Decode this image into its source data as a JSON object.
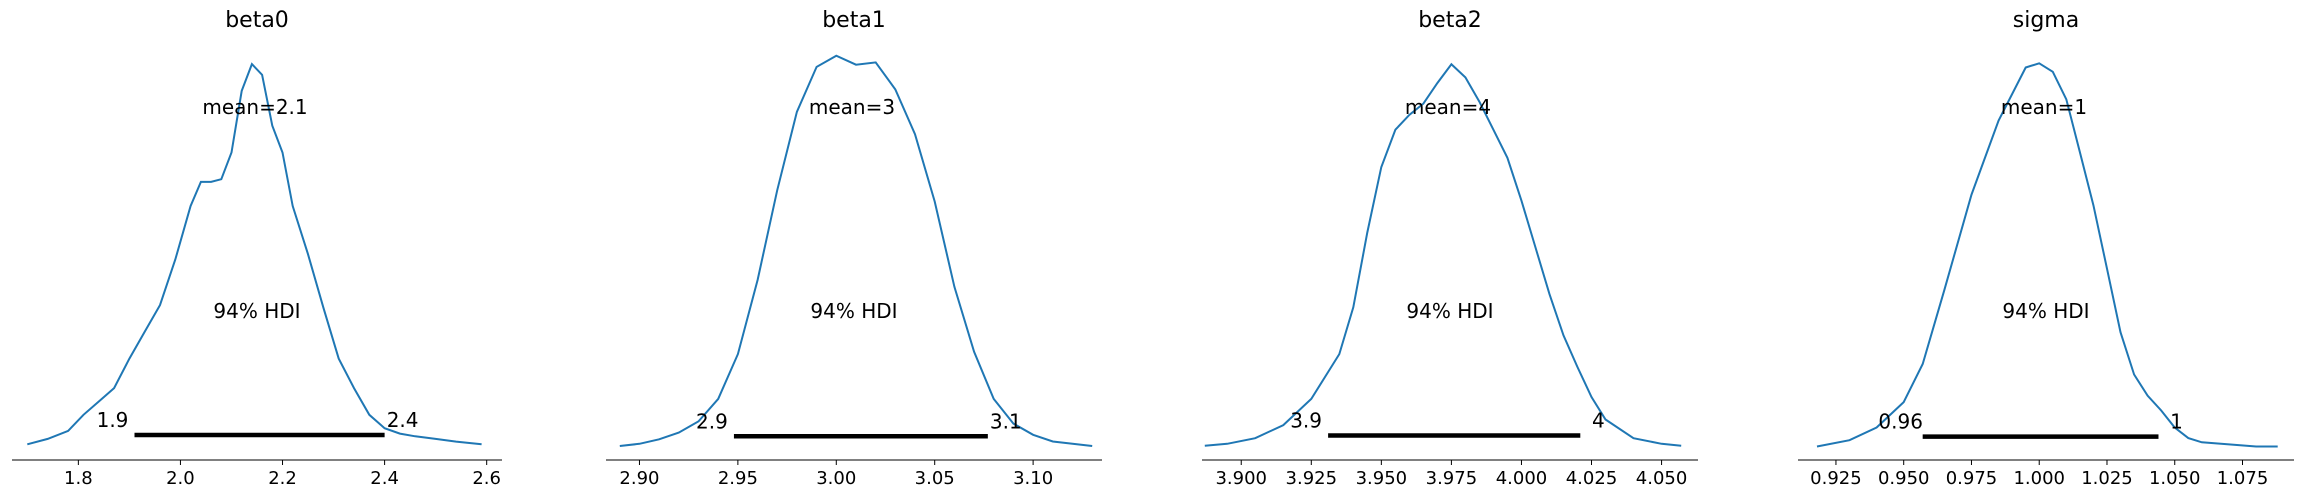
{
  "chart_data": [
    {
      "type": "line",
      "title": "beta0",
      "mean_label": "mean=2.1",
      "hdi_label": "94% HDI",
      "hdi_low_label": "1.9",
      "hdi_high_label": "2.4",
      "hdi": [
        1.91,
        2.4
      ],
      "xlim": [
        1.67,
        2.63
      ],
      "xticks": [
        1.8,
        2.0,
        2.2,
        2.4,
        2.6
      ],
      "xtick_labels": [
        "1.8",
        "2.0",
        "2.2",
        "2.4",
        "2.6"
      ],
      "x": [
        1.7,
        1.74,
        1.78,
        1.81,
        1.84,
        1.87,
        1.9,
        1.93,
        1.96,
        1.99,
        2.02,
        2.04,
        2.06,
        2.08,
        2.1,
        2.12,
        2.14,
        2.16,
        2.18,
        2.2,
        2.22,
        2.25,
        2.28,
        2.31,
        2.34,
        2.37,
        2.4,
        2.43,
        2.46,
        2.5,
        2.54,
        2.59
      ],
      "y": [
        0.01,
        0.03,
        0.06,
        0.12,
        0.17,
        0.22,
        0.33,
        0.43,
        0.53,
        0.7,
        0.9,
        0.99,
        0.99,
        1.0,
        1.1,
        1.33,
        1.43,
        1.39,
        1.2,
        1.1,
        0.9,
        0.72,
        0.52,
        0.33,
        0.22,
        0.12,
        0.07,
        0.05,
        0.04,
        0.03,
        0.02,
        0.01
      ],
      "ylim": [
        -0.03,
        1.52
      ]
    },
    {
      "type": "line",
      "title": "beta1",
      "mean_label": "mean=3",
      "hdi_label": "94% HDI",
      "hdi_low_label": "2.9",
      "hdi_high_label": "3.1",
      "hdi": [
        2.948,
        3.077
      ],
      "xlim": [
        2.883,
        3.135
      ],
      "xticks": [
        2.9,
        2.95,
        3.0,
        3.05,
        3.1
      ],
      "xtick_labels": [
        "2.90",
        "2.95",
        "3.00",
        "3.05",
        "3.10"
      ],
      "x": [
        2.89,
        2.9,
        2.91,
        2.92,
        2.93,
        2.94,
        2.95,
        2.96,
        2.97,
        2.98,
        2.99,
        3.0,
        3.01,
        3.02,
        3.03,
        3.04,
        3.05,
        3.06,
        3.07,
        3.08,
        3.09,
        3.1,
        3.11,
        3.12,
        3.13
      ],
      "y": [
        0.01,
        0.02,
        0.04,
        0.07,
        0.12,
        0.22,
        0.42,
        0.75,
        1.15,
        1.5,
        1.7,
        1.75,
        1.71,
        1.72,
        1.6,
        1.4,
        1.1,
        0.72,
        0.43,
        0.22,
        0.11,
        0.06,
        0.03,
        0.02,
        0.01
      ],
      "ylim": [
        -0.03,
        1.82
      ]
    },
    {
      "type": "line",
      "title": "beta2",
      "mean_label": "mean=4",
      "hdi_label": "94% HDI",
      "hdi_low_label": "3.9",
      "hdi_high_label": "4",
      "hdi": [
        3.931,
        4.021
      ],
      "xlim": [
        3.886,
        4.063
      ],
      "xticks": [
        3.9,
        3.925,
        3.95,
        3.975,
        4.0,
        4.025,
        4.05
      ],
      "xtick_labels": [
        "3.900",
        "3.925",
        "3.950",
        "3.975",
        "4.000",
        "4.025",
        "4.050"
      ],
      "x": [
        3.887,
        3.895,
        3.905,
        3.915,
        3.925,
        3.93,
        3.935,
        3.94,
        3.945,
        3.95,
        3.955,
        3.96,
        3.965,
        3.97,
        3.975,
        3.98,
        3.985,
        3.99,
        3.995,
        4.0,
        4.005,
        4.01,
        4.015,
        4.02,
        4.025,
        4.03,
        4.04,
        4.05,
        4.057
      ],
      "y": [
        0.01,
        0.02,
        0.05,
        0.12,
        0.26,
        0.38,
        0.5,
        0.75,
        1.15,
        1.5,
        1.7,
        1.78,
        1.84,
        1.95,
        2.05,
        1.98,
        1.85,
        1.7,
        1.55,
        1.32,
        1.07,
        0.82,
        0.6,
        0.43,
        0.27,
        0.15,
        0.05,
        0.02,
        0.01
      ],
      "ylim": [
        -0.04,
        2.18
      ]
    },
    {
      "type": "line",
      "title": "sigma",
      "mean_label": "mean=1",
      "hdi_label": "94% HDI",
      "hdi_low_label": "0.96",
      "hdi_high_label": "1",
      "hdi": [
        0.957,
        1.044
      ],
      "xlim": [
        0.911,
        1.094
      ],
      "xticks": [
        0.925,
        0.95,
        0.975,
        1.0,
        1.025,
        1.05,
        1.075
      ],
      "xtick_labels": [
        "0.925",
        "0.950",
        "0.975",
        "1.000",
        "1.025",
        "1.050",
        "1.075"
      ],
      "x": [
        0.918,
        0.93,
        0.94,
        0.95,
        0.957,
        0.965,
        0.975,
        0.985,
        0.995,
        1.0,
        1.005,
        1.01,
        1.015,
        1.02,
        1.025,
        1.03,
        1.035,
        1.04,
        1.045,
        1.05,
        1.055,
        1.06,
        1.07,
        1.08,
        1.088
      ],
      "y": [
        0.01,
        0.04,
        0.1,
        0.22,
        0.4,
        0.75,
        1.2,
        1.55,
        1.8,
        1.82,
        1.78,
        1.65,
        1.4,
        1.15,
        0.85,
        0.55,
        0.35,
        0.25,
        0.18,
        0.1,
        0.05,
        0.03,
        0.02,
        0.01,
        0.01
      ],
      "ylim": [
        -0.03,
        1.93
      ]
    }
  ]
}
